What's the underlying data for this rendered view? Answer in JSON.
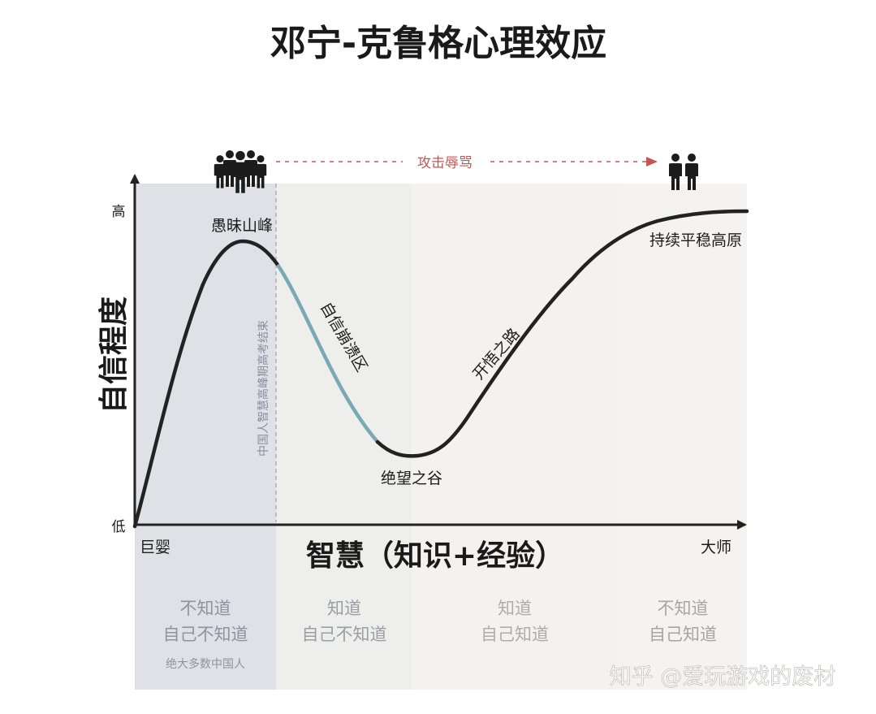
{
  "title": "邓宁-克鲁格心理效应",
  "axes": {
    "y_title": "自信程度",
    "y_high": "高",
    "y_low": "低",
    "x_title": "智慧（知识+经验）",
    "x_start": "巨婴",
    "x_end": "大师"
  },
  "curve_labels": {
    "peak": "愚昧山峰",
    "decline": "自信崩溃区",
    "valley": "绝望之谷",
    "rise": "开悟之路",
    "plateau": "持续平稳高原"
  },
  "divider_note": "中国人智慧高峰期高考结束",
  "attack_label": "攻击辱骂",
  "icons": {
    "crowd": "crowd-people-icon",
    "pair": "two-people-icon",
    "arrow": "dashed-arrow-right-icon"
  },
  "stages": [
    {
      "line1": "不知道",
      "line2": "自己不知道",
      "note": "绝大多数中国人",
      "color": "#8e939f"
    },
    {
      "line1": "知道",
      "line2": "自己不知道",
      "color": "#9a9ea6"
    },
    {
      "line1": "知道",
      "line2": "自己知道",
      "color": "#b3aba6"
    },
    {
      "line1": "不知道",
      "line2": "自己知道",
      "color": "#a6a6a6"
    }
  ],
  "watermark": "知乎 @爱玩游戏的废材",
  "colors": {
    "curve": "#222222",
    "decline_segment": "#79a9b2",
    "attack": "#c05858",
    "zone_1": "#dfe1e7",
    "zone_2": "#eeeeec",
    "zone_3": "#f4f2ee",
    "zone_4": "#f4f3f1"
  }
}
